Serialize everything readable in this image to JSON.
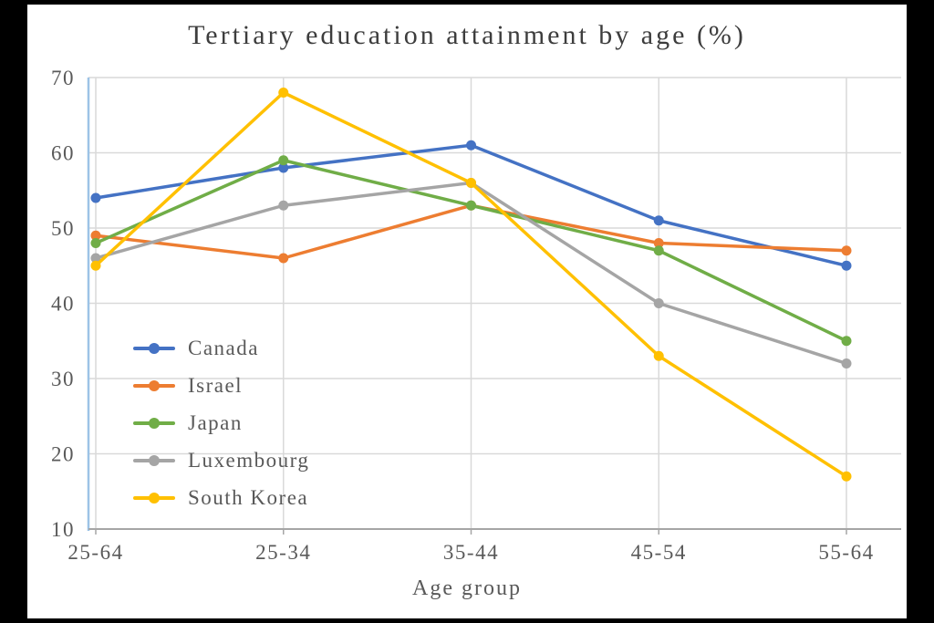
{
  "page": {
    "background_color": "#000000",
    "card_background_color": "#ffffff"
  },
  "chart_data": {
    "type": "line",
    "title": "Tertiary education attainment by age (%)",
    "xlabel": "Age group",
    "ylabel": "",
    "ylim": [
      10,
      70
    ],
    "yticks": [
      10,
      20,
      30,
      40,
      50,
      60,
      70
    ],
    "grid": true,
    "legend_position": "inside-left-middle",
    "categories": [
      "25-64",
      "25-34",
      "35-44",
      "45-54",
      "55-64"
    ],
    "series": [
      {
        "name": "Canada",
        "color": "#4472C4",
        "values": [
          54,
          58,
          61,
          51,
          45
        ]
      },
      {
        "name": "Israel",
        "color": "#ED7D31",
        "values": [
          49,
          46,
          53,
          48,
          47
        ]
      },
      {
        "name": "Japan",
        "color": "#70AD47",
        "values": [
          48,
          59,
          53,
          47,
          35
        ]
      },
      {
        "name": "Luxembourg",
        "color": "#A5A5A5",
        "values": [
          46,
          53,
          56,
          40,
          32
        ]
      },
      {
        "name": "South Korea",
        "color": "#FFC000",
        "values": [
          45,
          68,
          56,
          33,
          17
        ]
      }
    ]
  },
  "style": {
    "text_color": "#595959",
    "title_color": "#3d3d3d",
    "grid_color": "#D9D9D9",
    "axis_color": "#A6A6A6",
    "y_axis_color": "#9DC3E6"
  }
}
